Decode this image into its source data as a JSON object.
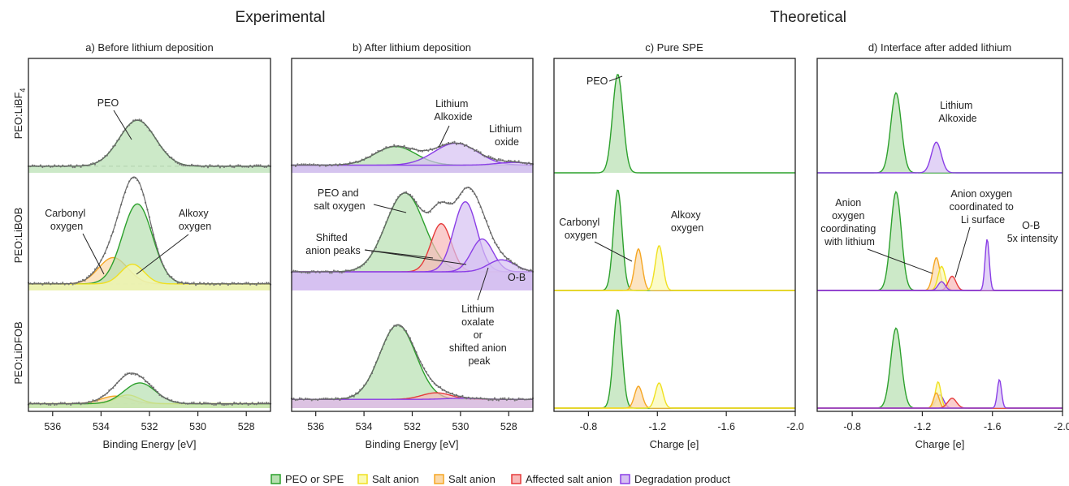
{
  "group_titles": {
    "left": "Experimental",
    "right": "Theoretical"
  },
  "row_labels": [
    "PEO:LiBF",
    "PEO:LiBOB",
    "PEO:LiDFOB"
  ],
  "row_label_subscript": "4",
  "colors": {
    "PEO": "#2ca02c",
    "PEO_fill": "#b7e0b0",
    "salt1": "#f0e020",
    "salt1_fill": "#fafab0",
    "salt2": "#f5a623",
    "salt2_fill": "#fbd9a8",
    "affected": "#e63b3b",
    "affected_fill": "#f8b8b8",
    "degradation": "#8a3ee6",
    "degradation_fill": "#d6c0f2",
    "scatter": "#777777"
  },
  "legend": [
    {
      "label": "PEO or SPE",
      "key": "PEO"
    },
    {
      "label": "Salt anion",
      "key": "salt1"
    },
    {
      "label": "Salt anion",
      "key": "salt2"
    },
    {
      "label": "Affected salt anion",
      "key": "affected"
    },
    {
      "label": "Degradation product",
      "key": "degradation"
    }
  ],
  "chart_data": [
    {
      "type": "area",
      "title": "a) Before lithium deposition",
      "xlabel": "Binding Energy [eV]",
      "xlim": [
        537,
        527
      ],
      "xticks": [
        "536",
        "534",
        "532",
        "530",
        "528"
      ],
      "xtick_values": [
        536,
        534,
        532,
        530,
        528
      ],
      "rows": [
        {
          "name": "PEO:LiBF4",
          "scatter": true,
          "baseline": 0.06,
          "peaks": [
            {
              "key": "PEO",
              "center": 532.5,
              "amplitude": 0.42,
              "width": 0.75
            }
          ]
        },
        {
          "name": "PEO:LiBOB",
          "scatter": true,
          "baseline": 0.06,
          "peaks": [
            {
              "key": "salt2",
              "center": 533.5,
              "amplitude": 0.24,
              "width": 0.6
            },
            {
              "key": "PEO",
              "center": 532.5,
              "amplitude": 0.73,
              "width": 0.62
            },
            {
              "key": "salt1",
              "center": 532.7,
              "amplitude": 0.18,
              "width": 0.48
            }
          ]
        },
        {
          "name": "PEO:LiDFOB",
          "scatter": true,
          "baseline": 0.04,
          "peaks": [
            {
              "key": "salt2",
              "center": 533.4,
              "amplitude": 0.07,
              "width": 0.6
            },
            {
              "key": "salt1",
              "center": 532.9,
              "amplitude": 0.08,
              "width": 0.48
            },
            {
              "key": "PEO",
              "center": 532.4,
              "amplitude": 0.19,
              "width": 0.65
            }
          ]
        }
      ],
      "annotations": [
        {
          "text": [
            "PEO"
          ]
        },
        {
          "text": [
            "Carbonyl",
            "oxygen"
          ]
        },
        {
          "text": [
            "Alkoxy",
            "oxygen"
          ]
        }
      ]
    },
    {
      "type": "area",
      "title": "b) After lithium deposition",
      "xlabel": "Binding Energy [eV]",
      "xlim": [
        537,
        527
      ],
      "xticks": [
        "536",
        "534",
        "532",
        "530",
        "528"
      ],
      "xtick_values": [
        536,
        534,
        532,
        530,
        528
      ],
      "rows": [
        {
          "name": "PEO:LiBF4",
          "scatter": true,
          "baseline": 0.07,
          "peaks": [
            {
              "key": "PEO",
              "center": 532.7,
              "amplitude": 0.17,
              "width": 0.85
            },
            {
              "key": "degradation",
              "center": 530.2,
              "amplitude": 0.2,
              "width": 0.9
            },
            {
              "key": "degradation",
              "center": 527.8,
              "amplitude": 0.025,
              "width": 0.7
            }
          ]
        },
        {
          "name": "PEO:LiBOB",
          "scatter": true,
          "baseline": 0.17,
          "peaks": [
            {
              "key": "PEO",
              "center": 532.3,
              "amplitude": 0.72,
              "width": 0.8
            },
            {
              "key": "affected",
              "center": 530.8,
              "amplitude": 0.44,
              "width": 0.42
            },
            {
              "key": "degradation",
              "center": 529.8,
              "amplitude": 0.64,
              "width": 0.48
            },
            {
              "key": "degradation",
              "center": 529.1,
              "amplitude": 0.3,
              "width": 0.45
            },
            {
              "key": "degradation",
              "center": 528.3,
              "amplitude": 0.11,
              "width": 0.55
            }
          ]
        },
        {
          "name": "PEO:LiDFOB",
          "scatter": true,
          "baseline": 0.08,
          "peaks": [
            {
              "key": "PEO",
              "center": 532.6,
              "amplitude": 0.68,
              "width": 0.75
            },
            {
              "key": "affected",
              "center": 531.0,
              "amplitude": 0.06,
              "width": 0.6
            },
            {
              "key": "degradation",
              "center": 529.9,
              "amplitude": 0.01,
              "width": 0.7
            }
          ]
        }
      ],
      "annotations": [
        {
          "text": [
            "Lithium",
            "Alkoxide"
          ]
        },
        {
          "text": [
            "Lithium",
            "oxide"
          ]
        },
        {
          "text": [
            "PEO and",
            "salt oxygen"
          ]
        },
        {
          "text": [
            "Shifted",
            "anion peaks"
          ]
        },
        {
          "text": [
            "O-B"
          ]
        },
        {
          "text": [
            "Lithium",
            "oxalate",
            "or",
            "shifted anion",
            "peak"
          ]
        }
      ]
    },
    {
      "type": "area",
      "title": "c) Pure SPE",
      "xlabel": "Charge [e]",
      "xlim": [
        -0.6,
        -2.0
      ],
      "xticks": [
        "-0.8",
        "-1.2",
        "-1.6",
        "-2.0"
      ],
      "xtick_values": [
        -0.8,
        -1.2,
        -1.6,
        -2.0
      ],
      "rows": [
        {
          "name": "PEO:LiBF4",
          "scatter": false,
          "baseline": 0,
          "peaks": [
            {
              "key": "PEO",
              "center": -0.97,
              "amplitude": 0.9,
              "width": 0.03
            }
          ]
        },
        {
          "name": "PEO:LiBOB",
          "scatter": false,
          "baseline": 0,
          "peaks": [
            {
              "key": "PEO",
              "center": -0.97,
              "amplitude": 0.92,
              "width": 0.025
            },
            {
              "key": "salt2",
              "center": -1.09,
              "amplitude": 0.38,
              "width": 0.022
            },
            {
              "key": "salt1",
              "center": -1.21,
              "amplitude": 0.41,
              "width": 0.022
            }
          ]
        },
        {
          "name": "PEO:LiDFOB",
          "scatter": false,
          "baseline": 0,
          "peaks": [
            {
              "key": "PEO",
              "center": -0.97,
              "amplitude": 0.9,
              "width": 0.025
            },
            {
              "key": "salt2",
              "center": -1.09,
              "amplitude": 0.2,
              "width": 0.022
            },
            {
              "key": "salt1",
              "center": -1.21,
              "amplitude": 0.23,
              "width": 0.022
            }
          ]
        }
      ],
      "annotations": [
        {
          "text": [
            "PEO"
          ]
        },
        {
          "text": [
            "Carbonyl",
            "oxygen"
          ]
        },
        {
          "text": [
            "Alkoxy",
            "oxygen"
          ]
        }
      ]
    },
    {
      "type": "area",
      "title": "d) Interface after added lithium",
      "xlabel": "Charge [e]",
      "xlim": [
        -0.6,
        -2.0
      ],
      "xticks": [
        "-0.8",
        "-1.2",
        "-1.6",
        "-2.0"
      ],
      "xtick_values": [
        -0.8,
        -1.2,
        -1.6,
        -2.0
      ],
      "rows": [
        {
          "name": "PEO:LiBF4",
          "scatter": false,
          "baseline": 0,
          "peaks": [
            {
              "key": "PEO",
              "center": -1.05,
              "amplitude": 0.73,
              "width": 0.03
            },
            {
              "key": "degradation",
              "center": -1.28,
              "amplitude": 0.28,
              "width": 0.028
            }
          ]
        },
        {
          "name": "PEO:LiBOB",
          "scatter": false,
          "baseline": 0,
          "peaks": [
            {
              "key": "PEO",
              "center": -1.05,
              "amplitude": 0.9,
              "width": 0.03
            },
            {
              "key": "salt2",
              "center": -1.28,
              "amplitude": 0.3,
              "width": 0.02
            },
            {
              "key": "salt1",
              "center": -1.31,
              "amplitude": 0.22,
              "width": 0.02
            },
            {
              "key": "affected",
              "center": -1.37,
              "amplitude": 0.13,
              "width": 0.022
            },
            {
              "key": "degradation",
              "center": -1.31,
              "amplitude": 0.08,
              "width": 0.02
            },
            {
              "key": "degradation",
              "center": -1.57,
              "amplitude": 0.47,
              "width": 0.012
            }
          ]
        },
        {
          "name": "PEO:LiDFOB",
          "scatter": false,
          "baseline": 0,
          "peaks": [
            {
              "key": "PEO",
              "center": -1.05,
              "amplitude": 0.73,
              "width": 0.03
            },
            {
              "key": "degradation",
              "center": -1.3,
              "amplitude": 0.12,
              "width": 0.022
            },
            {
              "key": "salt1",
              "center": -1.29,
              "amplitude": 0.24,
              "width": 0.016
            },
            {
              "key": "salt2",
              "center": -1.28,
              "amplitude": 0.14,
              "width": 0.016
            },
            {
              "key": "affected",
              "center": -1.37,
              "amplitude": 0.09,
              "width": 0.025
            },
            {
              "key": "degradation",
              "center": -1.64,
              "amplitude": 0.26,
              "width": 0.012
            }
          ]
        }
      ],
      "annotations": [
        {
          "text": [
            "Lithium",
            "Alkoxide"
          ]
        },
        {
          "text": [
            "Anion",
            "oxygen",
            "coordinating",
            "with lithium"
          ]
        },
        {
          "text": [
            "Anion oxygen",
            "coordinated to",
            "Li surface"
          ]
        },
        {
          "text": [
            "O-B",
            "5x intensity"
          ]
        }
      ]
    }
  ]
}
